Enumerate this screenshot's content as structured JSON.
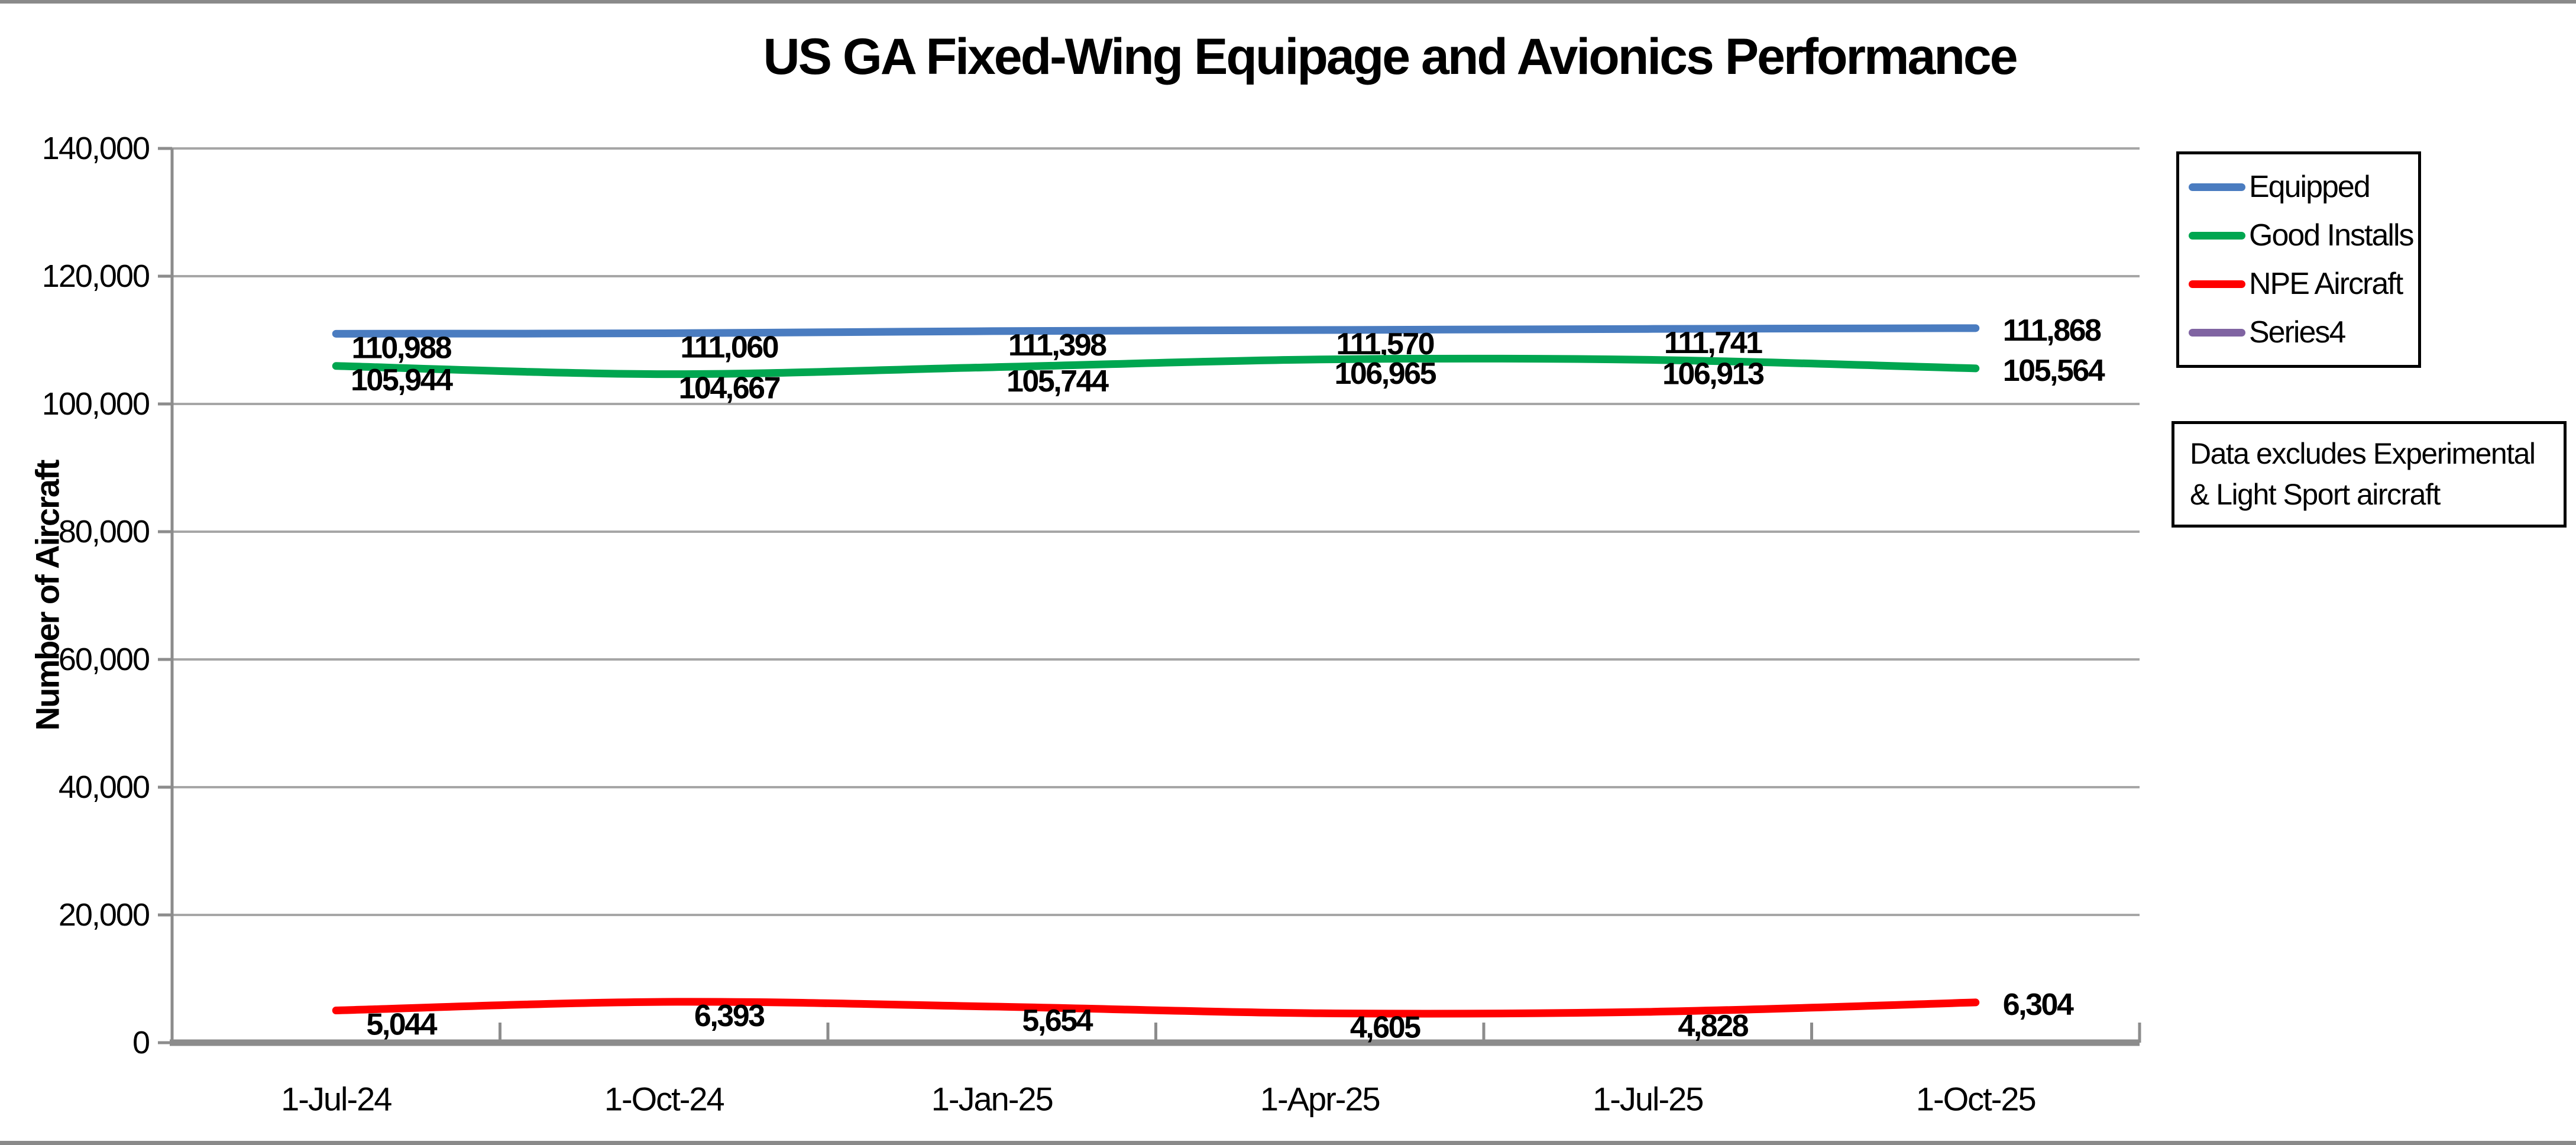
{
  "page": {
    "background_color": "#FFFFFF",
    "top_strip_color": "#8A8A8A",
    "bottom_strip_color": "#8A8A8A"
  },
  "chart_data": {
    "type": "line",
    "title": "US GA Fixed-Wing Equipage and Avionics Performance",
    "xlabel": "",
    "ylabel": "Number of Aircraft",
    "categories": [
      "1-Jul-24",
      "1-Oct-24",
      "1-Jan-25",
      "1-Apr-25",
      "1-Jul-25",
      "1-Oct-25"
    ],
    "ylim": [
      0,
      140000
    ],
    "ytick_step": 20000,
    "ytick_labels": [
      "0",
      "20,000",
      "40,000",
      "60,000",
      "80,000",
      "100,000",
      "120,000",
      "140,000"
    ],
    "grid": "horizontal",
    "gridline_color": "#A6A6A6",
    "axis_color": "#8C8C8C",
    "smoothed_lines": true,
    "data_labels_shown": true,
    "legend_position": "right",
    "series": [
      {
        "name": "Equipped",
        "color": "#4A7CC0",
        "values": [
          110988,
          111060,
          111398,
          111570,
          111741,
          111868
        ]
      },
      {
        "name": "Good Installs",
        "color": "#00A650",
        "values": [
          105944,
          104667,
          105744,
          106965,
          106913,
          105564
        ]
      },
      {
        "name": "NPE Aircraft",
        "color": "#FF0000",
        "values": [
          5044,
          6393,
          5654,
          4605,
          4828,
          6304
        ]
      },
      {
        "name": "Series4",
        "color": "#8064A2",
        "values": []
      }
    ],
    "annotation": "Data excludes Experimental & Light Sport aircraft"
  }
}
